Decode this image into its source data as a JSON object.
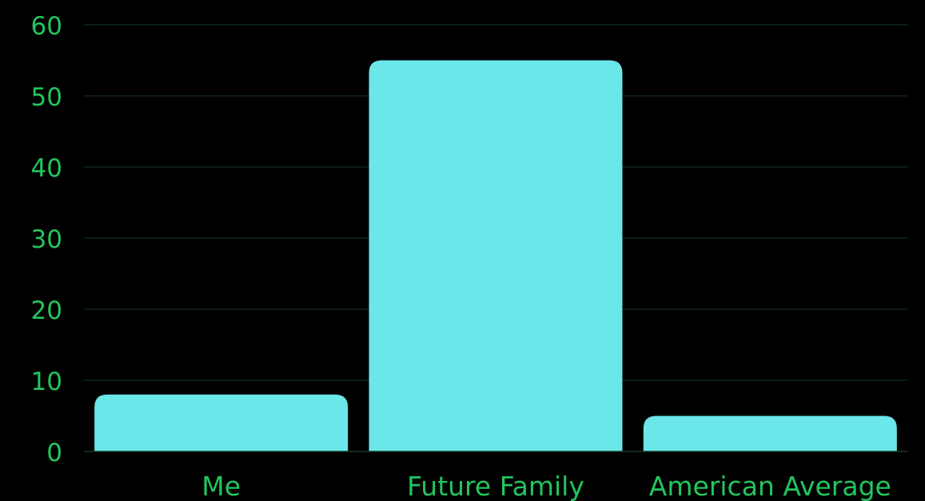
{
  "chart_data": {
    "type": "bar",
    "categories": [
      "Me",
      "Future Family",
      "American Average"
    ],
    "values": [
      8,
      55,
      5
    ],
    "ylim": [
      0,
      60
    ],
    "yticks": [
      0,
      10,
      20,
      30,
      40,
      50,
      60
    ],
    "grid": true,
    "colors": {
      "background": "#000000",
      "bar": "#6be6e9",
      "text": "#22c55e",
      "grid": "#163a24"
    }
  }
}
